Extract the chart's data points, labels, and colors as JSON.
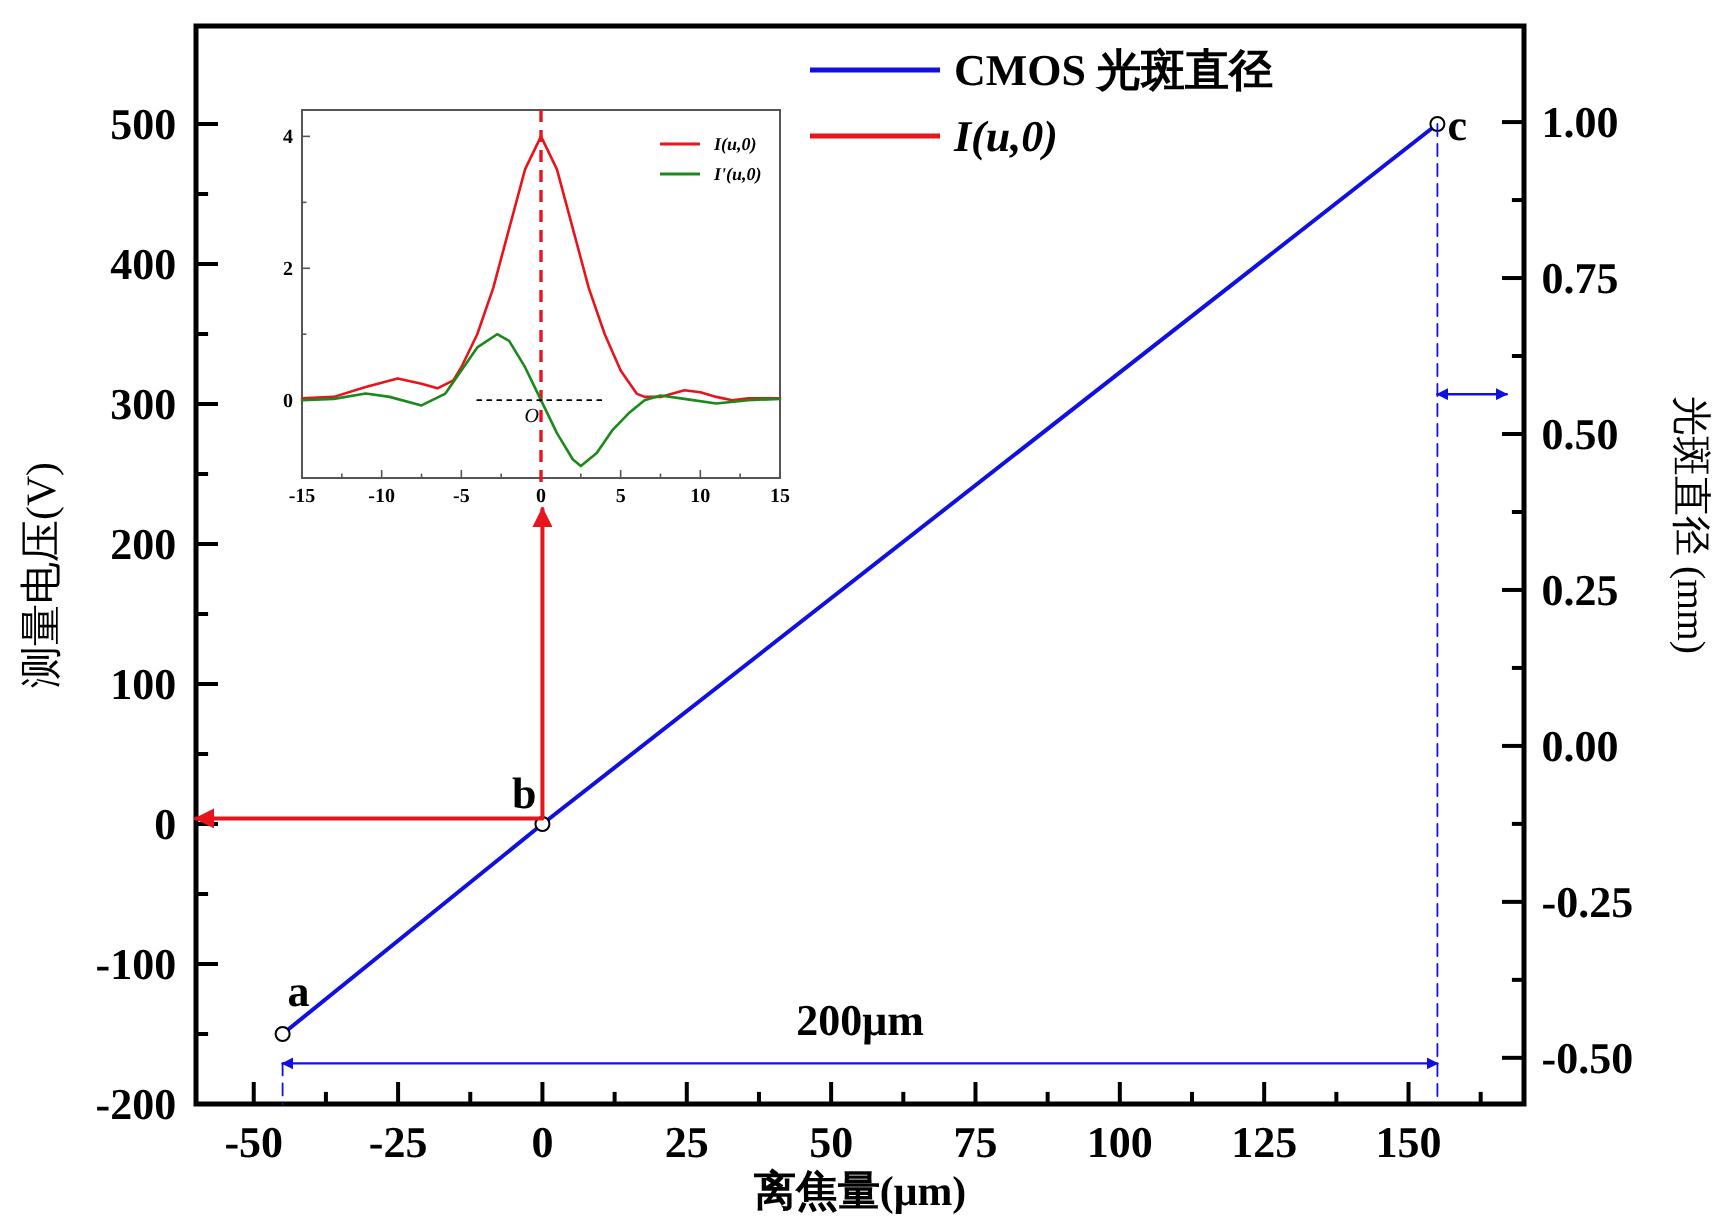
{
  "chart_data": [
    {
      "type": "line",
      "xlabel": "离焦量(μm)",
      "ylabel": "测量电压(V)",
      "y2label": "光斑直径 (mm)",
      "series": [
        {
          "name": "CMOS 光斑直径",
          "color": "#1010e0",
          "x": [
            -45,
            0,
            155
          ],
          "values": [
            -150,
            0,
            500
          ],
          "marker": "circle"
        },
        {
          "name": "*I(u,0)*",
          "color": "#e8141c",
          "x": [
            -60,
            0,
            0
          ],
          "values": [
            4,
            4,
            225
          ]
        },
        {
          "color": "#1010e0",
          "x": [
            -45,
            155
          ],
          "values": [
            -171,
            -171
          ]
        },
        {
          "color": "#1010e0",
          "x": [
            155,
            167
          ],
          "values": [
            307,
            307
          ]
        },
        {
          "color": "#1010e0",
          "x": [
            155,
            155
          ],
          "values": [
            500,
            -200
          ],
          "line_style": "dashed"
        },
        {
          "color": "#1010e0",
          "x": [
            -45,
            -45
          ],
          "values": [
            -171,
            -200
          ],
          "line_style": "dashed"
        }
      ],
      "xlim": [
        -60,
        170
      ],
      "xticks": [
        -50,
        -25,
        0,
        25,
        50,
        75,
        100,
        125,
        150
      ],
      "ylim": [
        -200,
        570
      ],
      "yticks": [
        -200,
        -100,
        0,
        100,
        200,
        300,
        400,
        500
      ],
      "y2lim": [
        -0.574,
        1.154
      ],
      "y2ticks": [
        {
          "value": -0.5,
          "label": "-0.50"
        },
        {
          "value": -0.25,
          "label": "-0.25"
        },
        {
          "value": 0,
          "label": "0.00"
        },
        {
          "value": 0.25,
          "label": "0.25"
        },
        {
          "value": 0.5,
          "label": "0.50"
        },
        {
          "value": 0.75,
          "label": "0.75"
        },
        {
          "value": 1,
          "label": "1.00"
        }
      ],
      "legend": "top right",
      "annotations": [
        {
          "text": "a",
          "x": -45,
          "y": -150
        },
        {
          "text": "b",
          "x": 0,
          "y": 0
        },
        {
          "text": "c",
          "x": 155,
          "y": 500
        },
        {
          "text": "200μm",
          "x": 55,
          "y": -171
        }
      ]
    },
    {
      "type": "line",
      "series": [
        {
          "name": "*I(u,0)*",
          "color": "#e8141c",
          "x": [
            -15,
            -13,
            -11,
            -9,
            -7.5,
            -6.5,
            -5.5,
            -5,
            -4,
            -3,
            -2,
            -1,
            0,
            1,
            2,
            3,
            4,
            5,
            6,
            6.5,
            7.5,
            9,
            10,
            11,
            12,
            13,
            15
          ],
          "values": [
            0.03,
            0.05,
            0.2,
            0.33,
            0.25,
            0.18,
            0.3,
            0.5,
            1.0,
            1.7,
            2.6,
            3.5,
            4.0,
            3.5,
            2.6,
            1.7,
            1.0,
            0.45,
            0.1,
            0.05,
            0.05,
            0.15,
            0.12,
            0.05,
            0.0,
            0.03,
            0.03
          ]
        },
        {
          "name": "*I'(u,0)*",
          "color": "#1a8a1a",
          "x": [
            -15,
            -13,
            -11,
            -9.5,
            -7.5,
            -6,
            -5,
            -4,
            -2.75,
            -2,
            -1,
            0,
            1,
            2,
            2.5,
            3.5,
            4.5,
            5.5,
            6.5,
            7.5,
            9,
            11,
            13,
            15
          ],
          "values": [
            0.0,
            0.02,
            0.1,
            0.05,
            -0.08,
            0.1,
            0.45,
            0.8,
            1.0,
            0.9,
            0.5,
            0,
            -0.5,
            -0.9,
            -1.0,
            -0.8,
            -0.45,
            -0.2,
            0.0,
            0.07,
            0.02,
            -0.05,
            0.0,
            0.02
          ]
        },
        {
          "color": "#000000",
          "x": [
            -4,
            4
          ],
          "values": [
            0,
            0
          ],
          "line_style": "dotted"
        }
      ],
      "xlim": [
        -15,
        15
      ],
      "xticks": [
        -15,
        -10,
        -5,
        0,
        5,
        10,
        15
      ],
      "ylim": [
        -1.18,
        4.4
      ],
      "yticks": [
        0,
        2,
        4
      ],
      "legend": "top right",
      "ref_lines": [
        {
          "axis": "x",
          "value": 0,
          "color": "#e8141c",
          "line_style": "dashed"
        }
      ],
      "annotations": [
        {
          "text": "O",
          "x": 0,
          "y": 0
        }
      ]
    }
  ]
}
